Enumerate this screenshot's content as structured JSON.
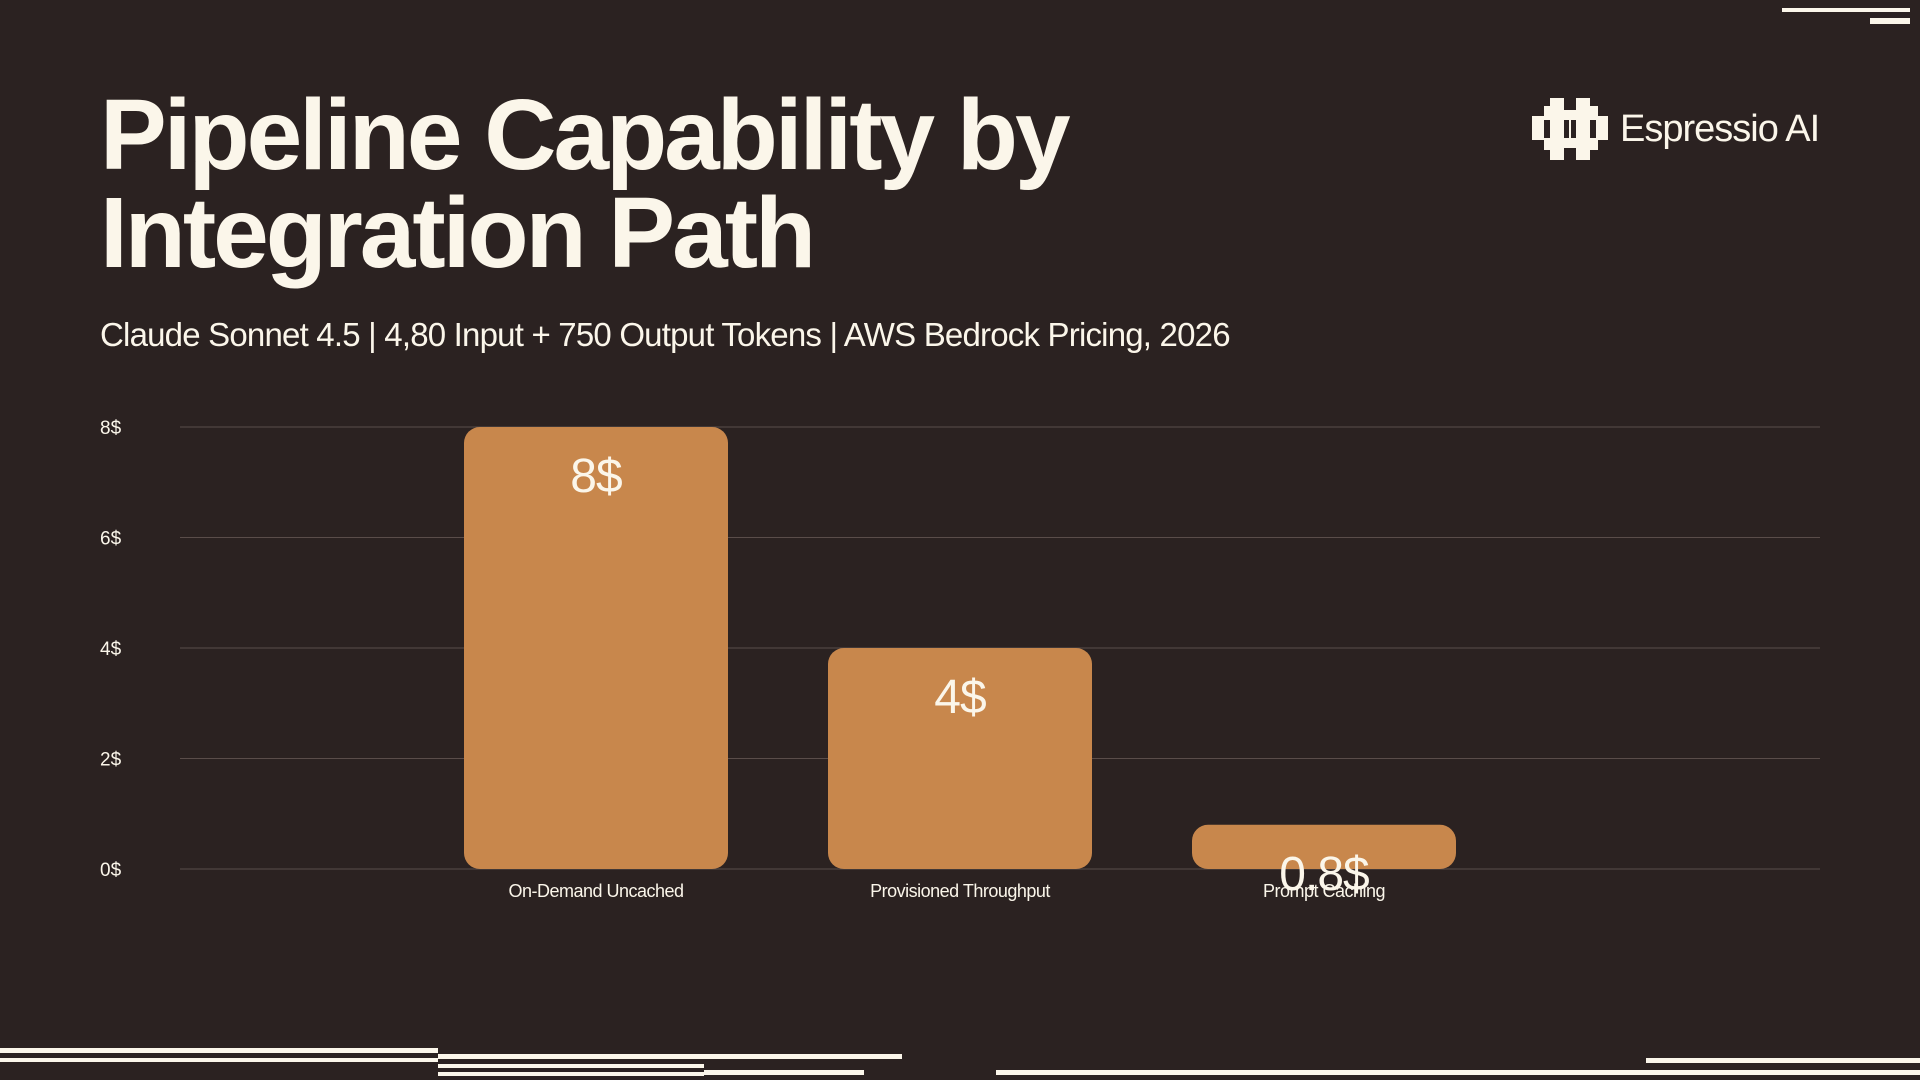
{
  "slide": {
    "title_line1": "Pipeline Capability by",
    "title_line2": "Integration Path",
    "subtitle": "Claude Sonnet 4.5 | 4,80 Input + 750 Output Tokens | AWS Bedrock Pricing, 2026",
    "brand_name": "Espressio AI",
    "brand_icon": "espressio-logo-icon"
  },
  "colors": {
    "background": "#2b2221",
    "bar": "#c8874c",
    "text": "#fbf6ea",
    "grid": "#5a4d4a"
  },
  "chart_data": {
    "type": "bar",
    "categories": [
      "On-Demand Uncached",
      "Provisioned Throughput",
      "Prompt Caching"
    ],
    "values": [
      8,
      4,
      0.8
    ],
    "value_labels": [
      "8$",
      "4$",
      "0.8$"
    ],
    "ylim": [
      0,
      8
    ],
    "yticks": [
      0,
      2,
      4,
      6,
      8
    ],
    "ytick_labels": [
      "0$",
      "2$",
      "4$",
      "6$",
      "8$"
    ],
    "grid": true,
    "legend": "none",
    "xlabel": "",
    "ylabel": ""
  }
}
